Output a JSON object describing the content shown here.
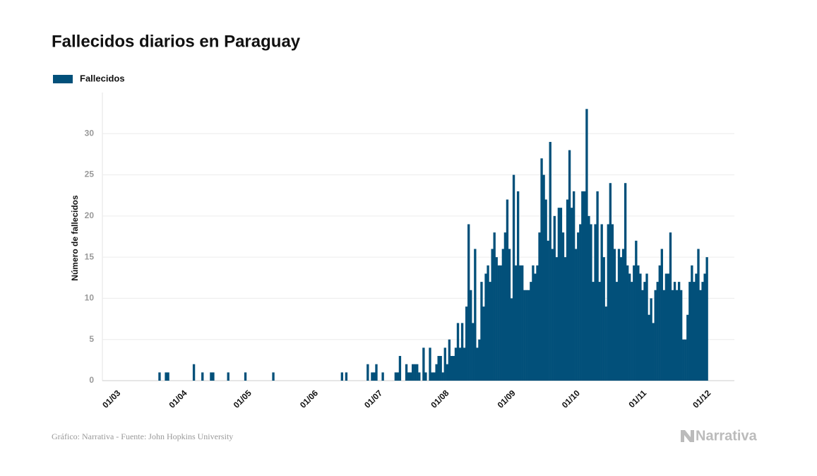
{
  "chart_data": {
    "type": "bar",
    "title": "Fallecidos diarios en Paraguay",
    "ylabel": "Número de fallecidos",
    "source": "Gráfico: Narrativa - Fuente: John Hopkins University",
    "brand": "Narrativa",
    "series": [
      {
        "name": "Fallecidos",
        "color": "#02507a",
        "values": [
          0,
          0,
          0,
          0,
          0,
          0,
          0,
          0,
          0,
          0,
          0,
          0,
          0,
          0,
          0,
          0,
          0,
          0,
          0,
          0,
          1,
          0,
          0,
          1,
          1,
          0,
          0,
          0,
          0,
          0,
          0,
          0,
          0,
          0,
          0,
          0,
          2,
          0,
          0,
          0,
          1,
          0,
          0,
          0,
          1,
          1,
          0,
          0,
          0,
          0,
          0,
          0,
          1,
          0,
          0,
          0,
          0,
          0,
          0,
          0,
          1,
          0,
          0,
          0,
          0,
          0,
          0,
          0,
          0,
          0,
          0,
          0,
          0,
          1,
          0,
          0,
          0,
          0,
          0,
          0,
          0,
          0,
          0,
          0,
          0,
          0,
          0,
          0,
          0,
          0,
          0,
          0,
          0,
          0,
          0,
          0,
          0,
          0,
          0,
          0,
          0,
          0,
          0,
          0,
          0,
          1,
          0,
          1,
          0,
          0,
          0,
          0,
          0,
          0,
          0,
          0,
          0,
          2,
          0,
          1,
          1,
          2,
          0,
          0,
          1,
          0,
          0,
          0,
          0,
          0,
          1,
          1,
          3,
          0,
          0,
          2,
          1,
          1,
          2,
          2,
          2,
          1,
          0,
          4,
          1,
          0,
          4,
          1,
          1,
          2,
          3,
          3,
          1,
          4,
          2,
          5,
          3,
          3,
          4,
          7,
          4,
          7,
          4,
          9,
          19,
          11,
          7,
          16,
          4,
          5,
          12,
          9,
          13,
          14,
          12,
          16,
          18,
          15,
          14,
          14,
          16,
          18,
          22,
          16,
          10,
          25,
          14,
          23,
          14,
          14,
          11,
          11,
          11,
          12,
          14,
          13,
          14,
          18,
          27,
          25,
          22,
          17,
          29,
          16,
          20,
          15,
          21,
          21,
          18,
          15,
          22,
          28,
          21,
          23,
          16,
          18,
          19,
          23,
          23,
          33,
          20,
          19,
          12,
          19,
          23,
          12,
          19,
          15,
          9,
          19,
          24,
          19,
          16,
          12,
          16,
          15,
          16,
          24,
          14,
          13,
          12,
          14,
          17,
          14,
          13,
          11,
          12,
          13,
          8,
          10,
          7,
          11,
          12,
          14,
          16,
          11,
          13,
          13,
          18,
          11,
          12,
          11,
          12,
          11,
          5,
          5,
          8,
          12,
          14,
          12,
          13,
          16,
          11,
          12,
          13,
          15
        ]
      }
    ],
    "categories": [
      "01/03",
      null,
      null,
      null,
      null,
      null,
      null,
      null,
      null,
      null,
      null,
      null,
      null,
      null,
      null,
      null,
      null,
      null,
      null,
      null,
      null,
      null,
      null,
      null,
      null,
      null,
      null,
      null,
      null,
      null,
      null,
      "01/04",
      null,
      null,
      null,
      null,
      null,
      null,
      null,
      null,
      null,
      null,
      null,
      null,
      null,
      null,
      null,
      null,
      null,
      null,
      null,
      null,
      null,
      null,
      null,
      null,
      null,
      null,
      null,
      null,
      null,
      "01/05",
      null,
      null,
      null,
      null,
      null,
      null,
      null,
      null,
      null,
      null,
      null,
      null,
      null,
      null,
      null,
      null,
      null,
      null,
      null,
      null,
      null,
      null,
      null,
      null,
      null,
      null,
      null,
      null,
      null,
      null,
      "01/06",
      null,
      null,
      null,
      null,
      null,
      null,
      null,
      null,
      null,
      null,
      null,
      null,
      null,
      null,
      null,
      null,
      null,
      null,
      null,
      null,
      null,
      null,
      null,
      null,
      null,
      null,
      null,
      null,
      null,
      "01/07",
      null,
      null,
      null,
      null,
      null,
      null,
      null,
      null,
      null,
      null,
      null,
      null,
      null,
      null,
      null,
      null,
      null,
      null,
      null,
      null,
      null,
      null,
      null,
      null,
      null,
      null,
      null,
      null,
      null,
      null,
      "01/08",
      null,
      null,
      null,
      null,
      null,
      null,
      null,
      null,
      null,
      null,
      null,
      null,
      null,
      null,
      null,
      null,
      null,
      null,
      null,
      null,
      null,
      null,
      null,
      null,
      null,
      null,
      null,
      null,
      null,
      null,
      "01/09",
      null,
      null,
      null,
      null,
      null,
      null,
      null,
      null,
      null,
      null,
      null,
      null,
      null,
      null,
      null,
      null,
      null,
      null,
      null,
      null,
      null,
      null,
      null,
      null,
      null,
      null,
      null,
      null,
      null,
      "01/10",
      null,
      null,
      null,
      null,
      null,
      null,
      null,
      null,
      null,
      null,
      null,
      null,
      null,
      null,
      null,
      null,
      null,
      null,
      null,
      null,
      null,
      null,
      null,
      null,
      null,
      null,
      null,
      null,
      null,
      null,
      "01/11",
      null,
      null,
      null,
      null,
      null,
      null,
      null,
      null,
      null,
      null,
      null,
      null,
      null,
      null,
      null,
      null,
      null,
      null,
      null,
      null,
      null,
      null,
      null,
      null,
      null,
      null,
      null,
      null,
      null,
      "01/12"
    ],
    "ylim": [
      0,
      35
    ],
    "yticks": [
      0,
      5,
      10,
      15,
      20,
      25,
      30
    ],
    "grid": true,
    "legend": "top-left"
  }
}
